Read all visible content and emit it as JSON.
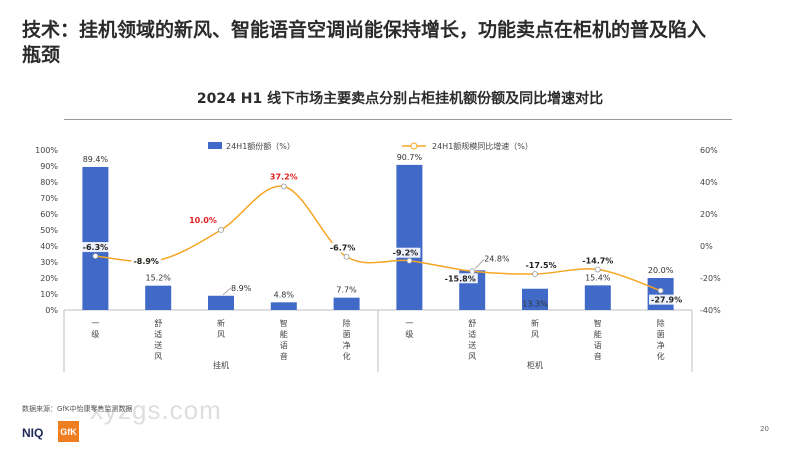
{
  "page": {
    "headline": "技术：挂机领域的新风、智能语音空调尚能保持增长，功能卖点在柜机的普及陷入瓶颈",
    "source": "数据来源：GfK中怡康零售监测数据",
    "page_number": "20",
    "logo_niq": "NIQ",
    "logo_gfk": "GfK",
    "watermark": "xyzgs.com"
  },
  "chart_data": {
    "type": "bar+line",
    "title": "2024 H1 线下市场主要卖点分别占柜挂机额份额及同比增速对比",
    "groups": [
      {
        "name": "挂机",
        "categories": [
          "一级",
          "舒适送风",
          "新风",
          "智能语音",
          "除菌净化"
        ]
      },
      {
        "name": "柜机",
        "categories": [
          "一级",
          "舒适送风",
          "新风",
          "智能语音",
          "除菌净化"
        ]
      }
    ],
    "categories": [
      "一级",
      "舒适送风",
      "新风",
      "智能语音",
      "除菌净化",
      "一级",
      "舒适送风",
      "新风",
      "智能语音",
      "除菌净化"
    ],
    "series": [
      {
        "name": "24H1额份额（%）",
        "type": "bar",
        "axis": "left",
        "color": "#4169c8",
        "values": [
          89.4,
          15.2,
          8.9,
          4.8,
          7.7,
          90.7,
          24.8,
          13.3,
          15.4,
          20.0
        ],
        "labels": [
          "89.4%",
          "15.2%",
          "8.9%",
          "4.8%",
          "7.7%",
          "90.7%",
          "24.8%",
          "13.3%",
          "15.4%",
          "20.0%"
        ]
      },
      {
        "name": "24H1额规模同比增速（%）",
        "type": "line",
        "axis": "right",
        "color": "#f5a623",
        "values": [
          -6.3,
          -8.9,
          10.0,
          37.2,
          -6.7,
          -9.2,
          -15.8,
          -17.5,
          -14.7,
          -27.9
        ],
        "labels": [
          "-6.3%",
          "-8.9%",
          "10.0%",
          "37.2%",
          "-6.7%",
          "-9.2%",
          "-15.8%",
          "-17.5%",
          "-14.7%",
          "-27.9%"
        ],
        "highlight_color": "#e02020",
        "highlight": [
          false,
          false,
          true,
          true,
          false,
          false,
          false,
          false,
          false,
          false
        ]
      }
    ],
    "y_left": {
      "min": 0,
      "max": 100,
      "ticks": [
        "0%",
        "10%",
        "20%",
        "30%",
        "40%",
        "50%",
        "60%",
        "70%",
        "80%",
        "90%",
        "100%"
      ]
    },
    "y_right": {
      "min": -40,
      "max": 60,
      "ticks": [
        "-40%",
        "-20%",
        "0%",
        "20%",
        "40%",
        "60%"
      ]
    },
    "legend_position": "top",
    "grid": false
  }
}
